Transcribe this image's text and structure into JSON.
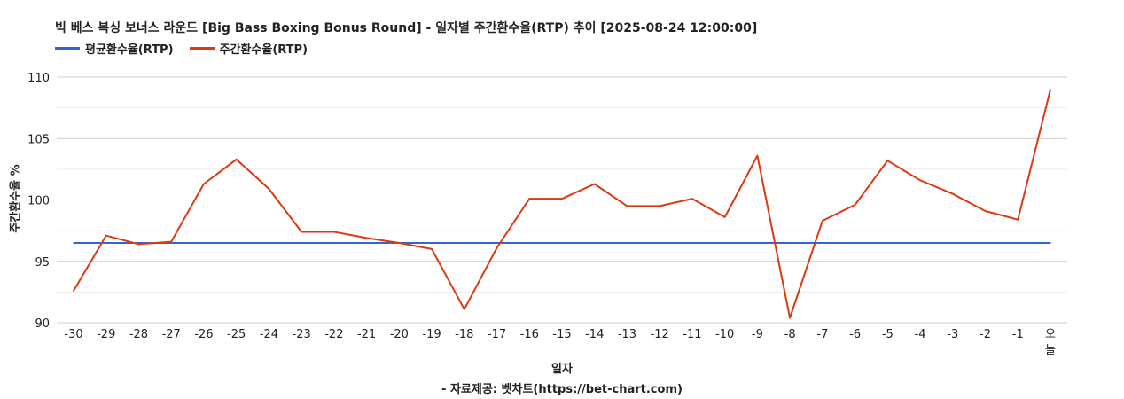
{
  "chart_data": {
    "type": "line",
    "title": "빅 베스 복싱 보너스 라운드 [Big Bass Boxing Bonus Round] - 일자별 주간환수율(RTP) 추이 [2025-08-24 12:00:00]",
    "xlabel": "일자",
    "ylabel": "주간환수율 %",
    "source": "- 자료제공: 벳차트(https://bet-chart.com)",
    "ylim": [
      90,
      110
    ],
    "yticks": [
      "90",
      "95",
      "100",
      "105",
      "110"
    ],
    "grid": true,
    "legend_position": "top-left",
    "categories": [
      "-30",
      "-29",
      "-28",
      "-27",
      "-26",
      "-25",
      "-24",
      "-23",
      "-22",
      "-21",
      "-20",
      "-19",
      "-18",
      "-17",
      "-16",
      "-15",
      "-14",
      "-13",
      "-12",
      "-11",
      "-10",
      "-9",
      "-8",
      "-7",
      "-6",
      "-5",
      "-4",
      "-3",
      "-2",
      "-1",
      "오늘"
    ],
    "series": [
      {
        "name": "평균환수율(RTP)",
        "color": "#3366cc",
        "values": [
          96.5,
          96.5,
          96.5,
          96.5,
          96.5,
          96.5,
          96.5,
          96.5,
          96.5,
          96.5,
          96.5,
          96.5,
          96.5,
          96.5,
          96.5,
          96.5,
          96.5,
          96.5,
          96.5,
          96.5,
          96.5,
          96.5,
          96.5,
          96.5,
          96.5,
          96.5,
          96.5,
          96.5,
          96.5,
          96.5,
          96.5
        ]
      },
      {
        "name": "주간환수율(RTP)",
        "color": "#dc3912",
        "values": [
          92.6,
          97.1,
          96.4,
          96.6,
          101.3,
          103.3,
          100.9,
          97.4,
          97.4,
          96.9,
          96.5,
          96.0,
          91.1,
          96.1,
          100.1,
          100.1,
          101.3,
          99.5,
          99.5,
          100.1,
          98.6,
          103.6,
          90.4,
          98.3,
          99.6,
          103.2,
          101.6,
          100.5,
          99.1,
          98.4,
          109.0
        ]
      }
    ]
  }
}
